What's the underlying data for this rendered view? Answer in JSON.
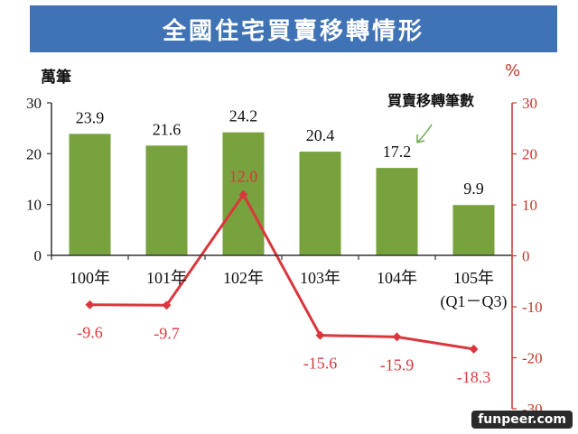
{
  "banner_title": "全國住宅買賣移轉情形",
  "watermark": "funpeer.com",
  "chart_data": {
    "type": "bar",
    "title": "全國住宅買賣移轉情形",
    "categories": [
      "100年",
      "101年",
      "102年",
      "103年",
      "104年",
      "105年"
    ],
    "category_sublabels": [
      "",
      "",
      "",
      "",
      "",
      "(Q1－Q3)"
    ],
    "series": [
      {
        "name": "買賣移轉筆數",
        "type": "bar",
        "axis": "left",
        "values": [
          23.9,
          21.6,
          24.2,
          20.4,
          17.2,
          9.9
        ],
        "labels": [
          "23.9",
          "21.6",
          "24.2",
          "20.4",
          "17.2",
          "9.9"
        ],
        "color": "#77a23d"
      },
      {
        "type": "line",
        "axis": "right",
        "values": [
          -9.6,
          -9.7,
          12.0,
          -15.6,
          -15.9,
          -18.3
        ],
        "labels": [
          "-9.6",
          "-9.7",
          "12.0",
          "-15.6",
          "-15.9",
          "-18.3"
        ],
        "color": "#d9373d"
      }
    ],
    "left_axis": {
      "unit": "萬筆",
      "ylim": [
        0,
        30
      ],
      "ticks": [
        0,
        10,
        20,
        30
      ]
    },
    "right_axis": {
      "unit": "%",
      "ylim": [
        -30,
        30
      ],
      "ticks": [
        -30,
        -20,
        -10,
        0,
        10,
        20,
        30
      ],
      "color": "#c0392b"
    },
    "annotation": "買賣移轉筆數",
    "grid": false
  }
}
